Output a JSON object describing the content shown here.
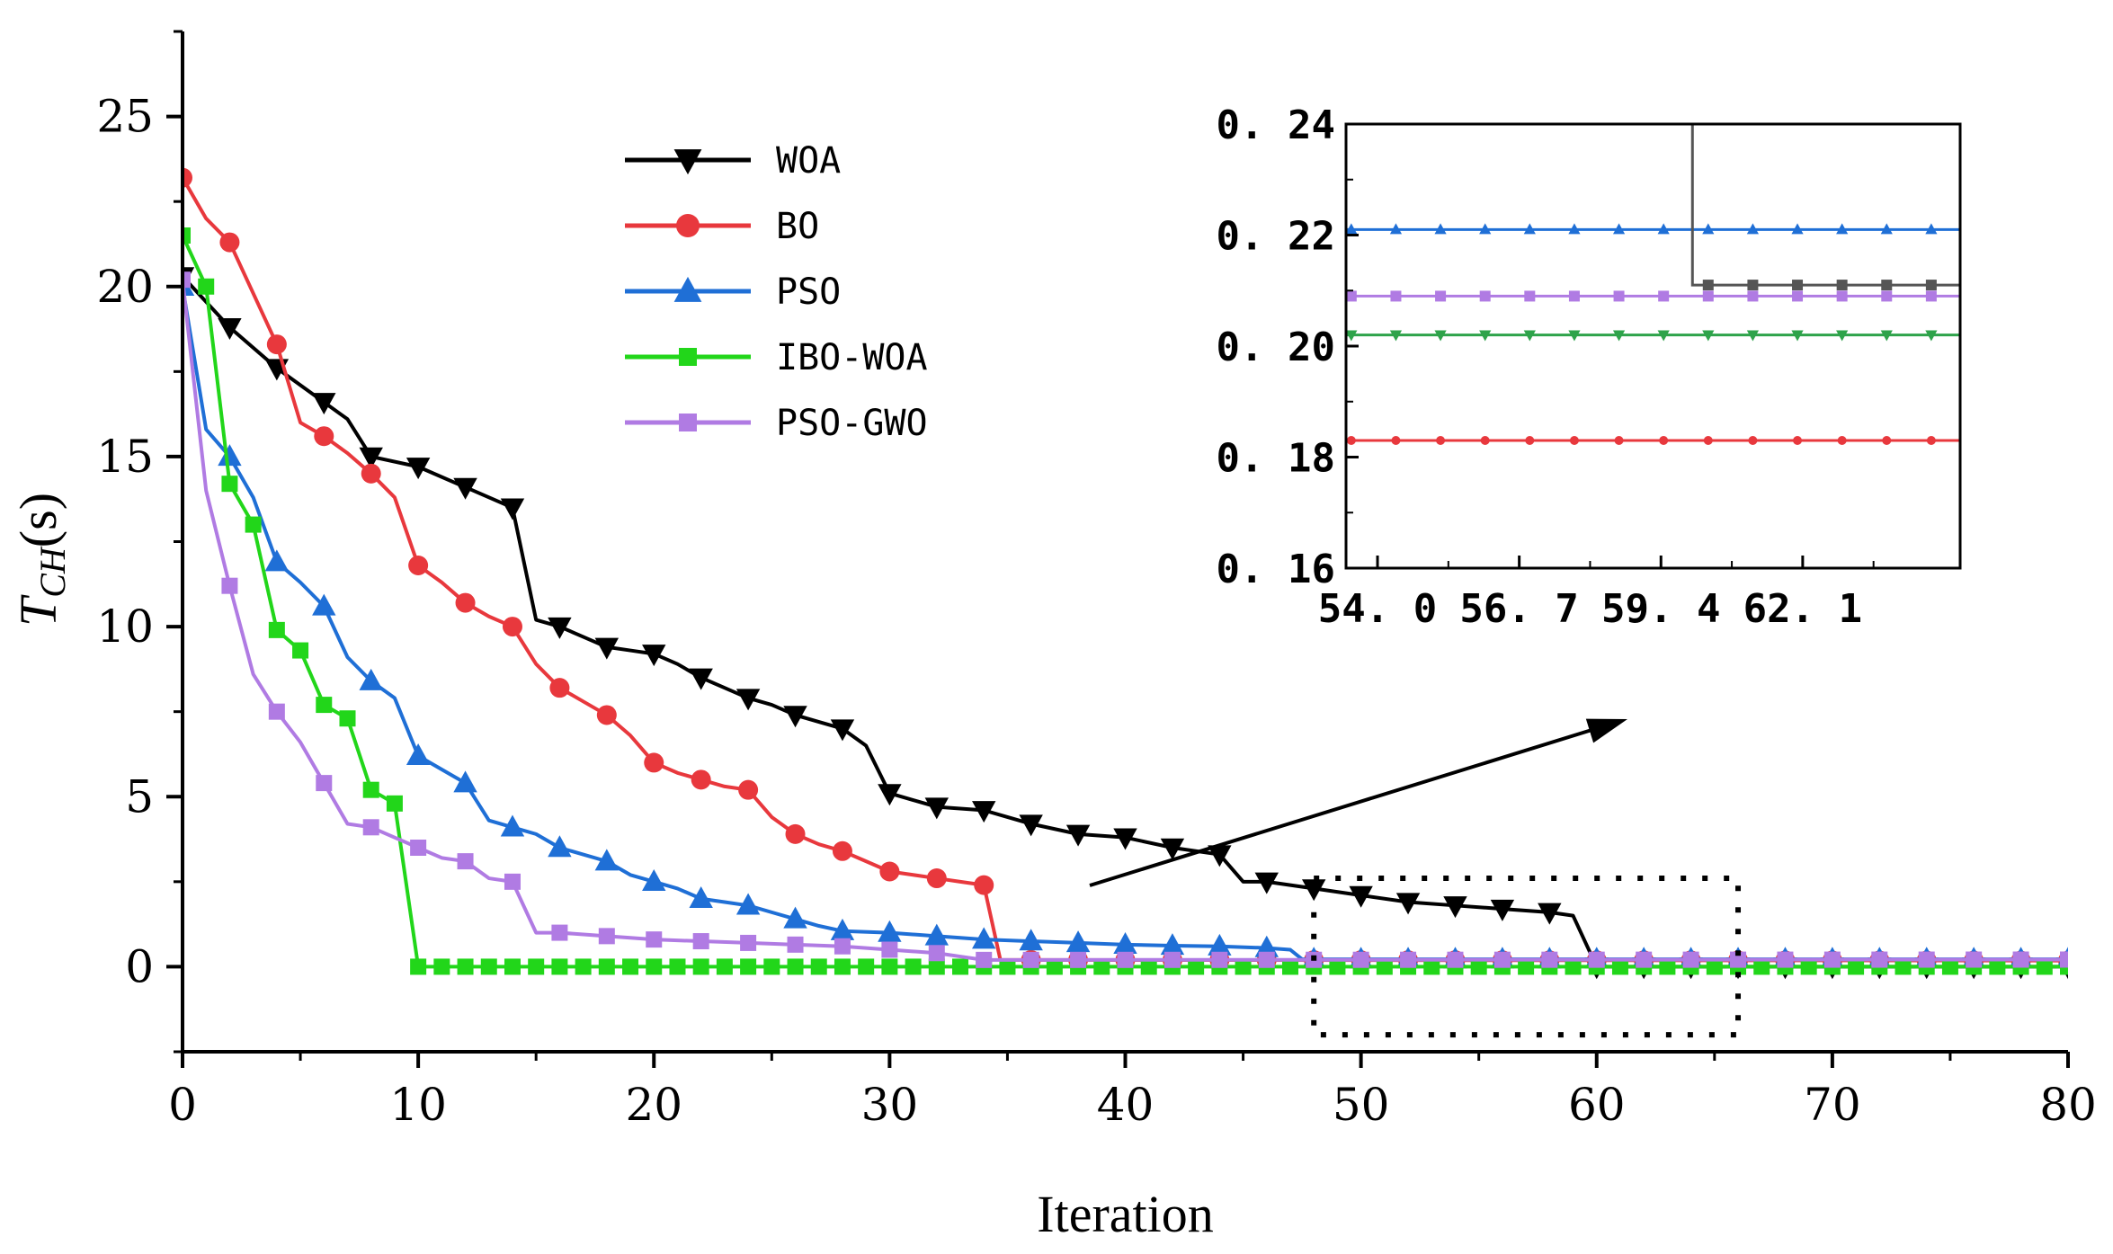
{
  "chart_data": {
    "type": "line",
    "xlabel": "Iteration",
    "ylabel_main": "T",
    "ylabel_sub": "CH",
    "ylabel_unit": "(s)",
    "xlim": [
      0,
      80
    ],
    "ylim": [
      -2.5,
      27.5
    ],
    "x_ticks": [
      0,
      10,
      20,
      30,
      40,
      50,
      60,
      70,
      80
    ],
    "x_tick_labels": [
      "0",
      "10",
      "20",
      "30",
      "40",
      "50",
      "60",
      "70",
      "80"
    ],
    "y_ticks": [
      0,
      5,
      10,
      15,
      20,
      25
    ],
    "y_tick_labels": [
      "0",
      "5",
      "10",
      "15",
      "20",
      "25"
    ],
    "legend_position": "top-center",
    "series": [
      {
        "name": "WOA",
        "color": "#000000",
        "marker": "triangle-down",
        "points": [
          [
            0,
            20.3
          ],
          [
            2,
            18.8
          ],
          [
            4,
            17.6
          ],
          [
            6,
            16.6
          ],
          [
            7,
            16.1
          ],
          [
            8,
            15.0
          ],
          [
            10,
            14.7
          ],
          [
            12,
            14.1
          ],
          [
            13,
            13.8
          ],
          [
            14,
            13.5
          ],
          [
            15,
            10.2
          ],
          [
            16,
            10.0
          ],
          [
            17,
            9.7
          ],
          [
            18,
            9.4
          ],
          [
            19,
            9.3
          ],
          [
            20,
            9.2
          ],
          [
            21,
            8.9
          ],
          [
            22,
            8.5
          ],
          [
            23,
            8.2
          ],
          [
            24,
            7.9
          ],
          [
            25,
            7.7
          ],
          [
            26,
            7.4
          ],
          [
            27,
            7.2
          ],
          [
            28,
            7.0
          ],
          [
            29,
            6.5
          ],
          [
            30,
            5.1
          ],
          [
            31,
            4.9
          ],
          [
            32,
            4.7
          ],
          [
            34,
            4.6
          ],
          [
            35,
            4.4
          ],
          [
            36,
            4.2
          ],
          [
            38,
            3.9
          ],
          [
            40,
            3.8
          ],
          [
            42,
            3.5
          ],
          [
            44,
            3.3
          ],
          [
            45,
            2.5
          ],
          [
            46,
            2.5
          ],
          [
            48,
            2.3
          ],
          [
            50,
            2.1
          ],
          [
            52,
            1.9
          ],
          [
            54,
            1.8
          ],
          [
            56,
            1.7
          ],
          [
            58,
            1.6
          ],
          [
            59,
            1.5
          ],
          [
            60,
            0.0
          ],
          [
            80,
            0.0
          ]
        ],
        "marker_x": [
          0,
          2,
          4,
          6,
          8,
          10,
          12,
          14,
          16,
          18,
          20,
          22,
          24,
          26,
          28,
          30,
          32,
          34,
          36,
          38,
          40,
          42,
          44,
          46,
          48,
          50,
          52,
          54,
          56,
          58,
          60,
          62,
          64,
          66,
          68,
          70,
          72,
          74,
          76,
          78,
          80
        ]
      },
      {
        "name": "BO",
        "color": "#e8383d",
        "marker": "circle",
        "points": [
          [
            0,
            23.2
          ],
          [
            1,
            22.0
          ],
          [
            2,
            21.3
          ],
          [
            3,
            19.8
          ],
          [
            4,
            18.3
          ],
          [
            5,
            16.0
          ],
          [
            6,
            15.6
          ],
          [
            7,
            15.1
          ],
          [
            8,
            14.5
          ],
          [
            9,
            13.8
          ],
          [
            10,
            11.8
          ],
          [
            11,
            11.3
          ],
          [
            12,
            10.7
          ],
          [
            13,
            10.3
          ],
          [
            14,
            10.0
          ],
          [
            15,
            8.9
          ],
          [
            16,
            8.2
          ],
          [
            17,
            7.8
          ],
          [
            18,
            7.4
          ],
          [
            19,
            6.8
          ],
          [
            20,
            6.0
          ],
          [
            21,
            5.7
          ],
          [
            22,
            5.5
          ],
          [
            23,
            5.3
          ],
          [
            24,
            5.2
          ],
          [
            25,
            4.4
          ],
          [
            26,
            3.9
          ],
          [
            27,
            3.6
          ],
          [
            28,
            3.4
          ],
          [
            29,
            3.1
          ],
          [
            30,
            2.8
          ],
          [
            31,
            2.7
          ],
          [
            32,
            2.6
          ],
          [
            33,
            2.5
          ],
          [
            34,
            2.4
          ],
          [
            34.7,
            0.2
          ],
          [
            80,
            0.18
          ]
        ],
        "marker_x": [
          0,
          2,
          4,
          6,
          8,
          10,
          12,
          14,
          16,
          18,
          20,
          22,
          24,
          26,
          28,
          30,
          32,
          34,
          36,
          38,
          40,
          42,
          44,
          46,
          48,
          50,
          52,
          54,
          56,
          58,
          60,
          62,
          64,
          66,
          68,
          70,
          72,
          74,
          76,
          78,
          80
        ]
      },
      {
        "name": "PSO",
        "color": "#1f6fd6",
        "marker": "triangle-up",
        "points": [
          [
            0,
            20.0
          ],
          [
            1,
            15.8
          ],
          [
            2,
            15.0
          ],
          [
            3,
            13.8
          ],
          [
            4,
            11.9
          ],
          [
            5,
            11.3
          ],
          [
            6,
            10.6
          ],
          [
            7,
            9.1
          ],
          [
            8,
            8.4
          ],
          [
            9,
            7.9
          ],
          [
            10,
            6.2
          ],
          [
            11,
            5.8
          ],
          [
            12,
            5.4
          ],
          [
            13,
            4.3
          ],
          [
            14,
            4.1
          ],
          [
            15,
            3.9
          ],
          [
            16,
            3.5
          ],
          [
            17,
            3.3
          ],
          [
            18,
            3.1
          ],
          [
            19,
            2.7
          ],
          [
            20,
            2.5
          ],
          [
            21,
            2.3
          ],
          [
            22,
            2.0
          ],
          [
            23,
            1.9
          ],
          [
            24,
            1.8
          ],
          [
            25,
            1.6
          ],
          [
            26,
            1.4
          ],
          [
            27,
            1.2
          ],
          [
            28,
            1.05
          ],
          [
            30,
            1.0
          ],
          [
            32,
            0.9
          ],
          [
            34,
            0.8
          ],
          [
            36,
            0.75
          ],
          [
            38,
            0.7
          ],
          [
            40,
            0.65
          ],
          [
            42,
            0.62
          ],
          [
            44,
            0.6
          ],
          [
            46,
            0.55
          ],
          [
            47,
            0.5
          ],
          [
            47.5,
            0.22
          ],
          [
            80,
            0.22
          ]
        ],
        "marker_x": [
          0,
          2,
          4,
          6,
          8,
          10,
          12,
          14,
          16,
          18,
          20,
          22,
          24,
          26,
          28,
          30,
          32,
          34,
          36,
          38,
          40,
          42,
          44,
          46,
          48,
          50,
          52,
          54,
          56,
          58,
          60,
          62,
          64,
          66,
          68,
          70,
          72,
          74,
          76,
          78,
          80
        ]
      },
      {
        "name": "IBO-WOA",
        "color": "#22d61a",
        "marker": "square",
        "points": [
          [
            0,
            21.5
          ],
          [
            1,
            20.0
          ],
          [
            2,
            14.2
          ],
          [
            3,
            13.0
          ],
          [
            4,
            9.9
          ],
          [
            5,
            9.3
          ],
          [
            6,
            7.7
          ],
          [
            7,
            7.3
          ],
          [
            8,
            5.2
          ],
          [
            9,
            4.8
          ],
          [
            10,
            0.0
          ],
          [
            80,
            0.0
          ]
        ],
        "marker_x": [
          0,
          1,
          2,
          3,
          4,
          5,
          6,
          7,
          8,
          9,
          10,
          11,
          12,
          13,
          14,
          15,
          16,
          17,
          18,
          19,
          20,
          21,
          22,
          23,
          24,
          25,
          26,
          27,
          28,
          29,
          30,
          31,
          32,
          33,
          34,
          35,
          36,
          37,
          38,
          39,
          40,
          41,
          42,
          43,
          44,
          45,
          46,
          47,
          48,
          49,
          50,
          51,
          52,
          53,
          54,
          55,
          56,
          57,
          58,
          59,
          60,
          61,
          62,
          63,
          64,
          65,
          66,
          67,
          68,
          69,
          70,
          71,
          72,
          73,
          74,
          75,
          76,
          77,
          78,
          79,
          80
        ]
      },
      {
        "name": "PSO-GWO",
        "color": "#b07be3",
        "marker": "square",
        "points": [
          [
            0,
            20.2
          ],
          [
            1,
            14.0
          ],
          [
            2,
            11.2
          ],
          [
            3,
            8.6
          ],
          [
            4,
            7.5
          ],
          [
            5,
            6.6
          ],
          [
            6,
            5.4
          ],
          [
            7,
            4.2
          ],
          [
            8,
            4.1
          ],
          [
            9,
            3.8
          ],
          [
            10,
            3.5
          ],
          [
            11,
            3.2
          ],
          [
            12,
            3.1
          ],
          [
            13,
            2.6
          ],
          [
            14,
            2.5
          ],
          [
            15,
            1.0
          ],
          [
            16,
            1.0
          ],
          [
            18,
            0.9
          ],
          [
            20,
            0.8
          ],
          [
            22,
            0.75
          ],
          [
            24,
            0.7
          ],
          [
            26,
            0.65
          ],
          [
            28,
            0.6
          ],
          [
            30,
            0.5
          ],
          [
            32,
            0.4
          ],
          [
            33,
            0.3
          ],
          [
            34,
            0.2
          ],
          [
            80,
            0.21
          ]
        ],
        "marker_x": [
          0,
          2,
          4,
          6,
          8,
          10,
          12,
          14,
          16,
          18,
          20,
          22,
          24,
          26,
          28,
          30,
          32,
          34,
          36,
          38,
          40,
          42,
          44,
          46,
          48,
          50,
          52,
          54,
          56,
          58,
          60,
          62,
          64,
          66,
          68,
          70,
          72,
          74,
          76,
          78,
          80
        ]
      }
    ],
    "annotations": {
      "zoom_box_x": [
        48,
        66
      ],
      "zoom_box_y": [
        -2,
        2.6
      ]
    },
    "inset": {
      "xlim": [
        53.4,
        65.1
      ],
      "ylim": [
        0.16,
        0.24
      ],
      "x_ticks": [
        54.0,
        56.7,
        59.4,
        62.1
      ],
      "x_tick_labels": [
        "54. 0",
        "56. 7",
        "59. 4",
        "62. 1"
      ],
      "y_ticks": [
        0.16,
        0.18,
        0.2,
        0.22,
        0.24
      ],
      "y_tick_labels": [
        "0. 16",
        "0. 18",
        "0. 20",
        "0. 22",
        "0. 24"
      ],
      "series": [
        {
          "color": "#1f6fd6",
          "marker": "triangle-up",
          "points": [
            [
              53.4,
              0.221
            ],
            [
              65.1,
              0.221
            ]
          ]
        },
        {
          "color": "#555555",
          "marker": "square",
          "points": [
            [
              60.0,
              0.26
            ],
            [
              60.0,
              0.211
            ],
            [
              65.1,
              0.211
            ]
          ]
        },
        {
          "color": "#b07be3",
          "marker": "square",
          "points": [
            [
              53.4,
              0.209
            ],
            [
              65.1,
              0.209
            ]
          ]
        },
        {
          "color": "#2ea34a",
          "marker": "triangle-down",
          "points": [
            [
              53.4,
              0.202
            ],
            [
              65.1,
              0.202
            ]
          ]
        },
        {
          "color": "#e8383d",
          "marker": "circle",
          "points": [
            [
              53.4,
              0.183
            ],
            [
              65.1,
              0.183
            ]
          ]
        }
      ]
    }
  }
}
